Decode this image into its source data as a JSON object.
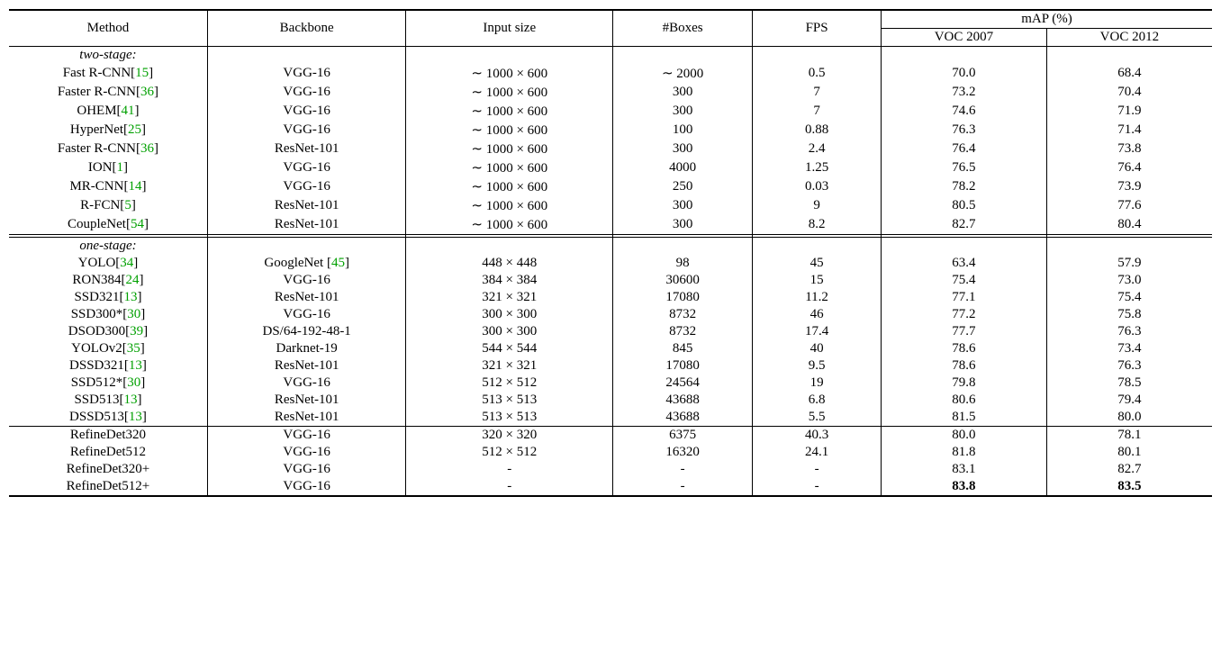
{
  "colors": {
    "citation": "#00a000",
    "text": "#000000",
    "background": "#ffffff",
    "rule": "#000000"
  },
  "typography": {
    "family": "Times New Roman",
    "size_pt": 11
  },
  "layout": {
    "col_widths_pct": [
      16.5,
      16.5,
      17.2,
      11.6,
      10.7,
      13.75,
      13.75
    ]
  },
  "headers": {
    "method": "Method",
    "backbone": "Backbone",
    "input_size": "Input size",
    "boxes": "#Boxes",
    "fps": "FPS",
    "map_group": "mAP (%)",
    "voc2007": "VOC 2007",
    "voc2012": "VOC 2012"
  },
  "sections": [
    {
      "label": "two-stage:",
      "rows": [
        {
          "method": "Fast R-CNN",
          "cite": "15",
          "backbone": "VGG-16",
          "input": "∼ 1000 × 600",
          "boxes": "∼ 2000",
          "fps": "0.5",
          "v07": "70.0",
          "v12": "68.4"
        },
        {
          "method": "Faster R-CNN",
          "cite": "36",
          "backbone": "VGG-16",
          "input": "∼ 1000 × 600",
          "boxes": "300",
          "fps": "7",
          "v07": "73.2",
          "v12": "70.4"
        },
        {
          "method": "OHEM",
          "cite": "41",
          "backbone": "VGG-16",
          "input": "∼ 1000 × 600",
          "boxes": "300",
          "fps": "7",
          "v07": "74.6",
          "v12": "71.9"
        },
        {
          "method": "HyperNet",
          "cite": "25",
          "backbone": "VGG-16",
          "input": "∼ 1000 × 600",
          "boxes": "100",
          "fps": "0.88",
          "v07": "76.3",
          "v12": "71.4"
        },
        {
          "method": "Faster R-CNN",
          "cite": "36",
          "backbone": "ResNet-101",
          "input": "∼ 1000 × 600",
          "boxes": "300",
          "fps": "2.4",
          "v07": "76.4",
          "v12": "73.8"
        },
        {
          "method": "ION",
          "cite": "1",
          "backbone": "VGG-16",
          "input": "∼ 1000 × 600",
          "boxes": "4000",
          "fps": "1.25",
          "v07": "76.5",
          "v12": "76.4"
        },
        {
          "method": "MR-CNN",
          "cite": "14",
          "backbone": "VGG-16",
          "input": "∼ 1000 × 600",
          "boxes": "250",
          "fps": "0.03",
          "v07": "78.2",
          "v12": "73.9"
        },
        {
          "method": "R-FCN",
          "cite": "5",
          "backbone": "ResNet-101",
          "input": "∼ 1000 × 600",
          "boxes": "300",
          "fps": "9",
          "v07": "80.5",
          "v12": "77.6"
        },
        {
          "method": "CoupleNet",
          "cite": "54",
          "backbone": "ResNet-101",
          "input": "∼ 1000 × 600",
          "boxes": "300",
          "fps": "8.2",
          "v07": "82.7",
          "v12": "80.4"
        }
      ]
    },
    {
      "label": "one-stage:",
      "rows": [
        {
          "method": "YOLO",
          "cite": "34",
          "backbone": "GoogleNet ",
          "backbone_cite": "45",
          "input": "448 × 448",
          "boxes": "98",
          "fps": "45",
          "v07": "63.4",
          "v12": "57.9"
        },
        {
          "method": "RON384",
          "cite": "24",
          "backbone": "VGG-16",
          "input": "384 × 384",
          "boxes": "30600",
          "fps": "15",
          "v07": "75.4",
          "v12": "73.0"
        },
        {
          "method": "SSD321",
          "cite": "13",
          "backbone": "ResNet-101",
          "input": "321 × 321",
          "boxes": "17080",
          "fps": "11.2",
          "v07": "77.1",
          "v12": "75.4"
        },
        {
          "method": "SSD300*",
          "cite": "30",
          "backbone": "VGG-16",
          "input": "300 × 300",
          "boxes": "8732",
          "fps": "46",
          "v07": "77.2",
          "v12": "75.8"
        },
        {
          "method": "DSOD300",
          "cite": "39",
          "backbone": "DS/64-192-48-1",
          "input": "300 × 300",
          "boxes": "8732",
          "fps": "17.4",
          "v07": "77.7",
          "v12": "76.3"
        },
        {
          "method": "YOLOv2",
          "cite": "35",
          "backbone": "Darknet-19",
          "input": "544 × 544",
          "boxes": "845",
          "fps": "40",
          "v07": "78.6",
          "v12": "73.4"
        },
        {
          "method": "DSSD321",
          "cite": "13",
          "backbone": "ResNet-101",
          "input": "321 × 321",
          "boxes": "17080",
          "fps": "9.5",
          "v07": "78.6",
          "v12": "76.3"
        },
        {
          "method": "SSD512*",
          "cite": "30",
          "backbone": "VGG-16",
          "input": "512 × 512",
          "boxes": "24564",
          "fps": "19",
          "v07": "79.8",
          "v12": "78.5"
        },
        {
          "method": "SSD513",
          "cite": "13",
          "backbone": "ResNet-101",
          "input": "513 × 513",
          "boxes": "43688",
          "fps": "6.8",
          "v07": "80.6",
          "v12": "79.4"
        },
        {
          "method": "DSSD513",
          "cite": "13",
          "backbone": "ResNet-101",
          "input": "513 × 513",
          "boxes": "43688",
          "fps": "5.5",
          "v07": "81.5",
          "v12": "80.0"
        }
      ]
    },
    {
      "label": null,
      "rows": [
        {
          "method": "RefineDet320",
          "backbone": "VGG-16",
          "input": "320 × 320",
          "boxes": "6375",
          "fps": "40.3",
          "v07": "80.0",
          "v12": "78.1"
        },
        {
          "method": "RefineDet512",
          "backbone": "VGG-16",
          "input": "512 × 512",
          "boxes": "16320",
          "fps": "24.1",
          "v07": "81.8",
          "v12": "80.1"
        },
        {
          "method": "RefineDet320+",
          "backbone": "VGG-16",
          "input": "-",
          "boxes": "-",
          "fps": "-",
          "v07": "83.1",
          "v12": "82.7"
        },
        {
          "method": "RefineDet512+",
          "backbone": "VGG-16",
          "input": "-",
          "boxes": "-",
          "fps": "-",
          "v07": "83.8",
          "v12": "83.5",
          "bold_v07": true,
          "bold_v12": true
        }
      ]
    }
  ]
}
